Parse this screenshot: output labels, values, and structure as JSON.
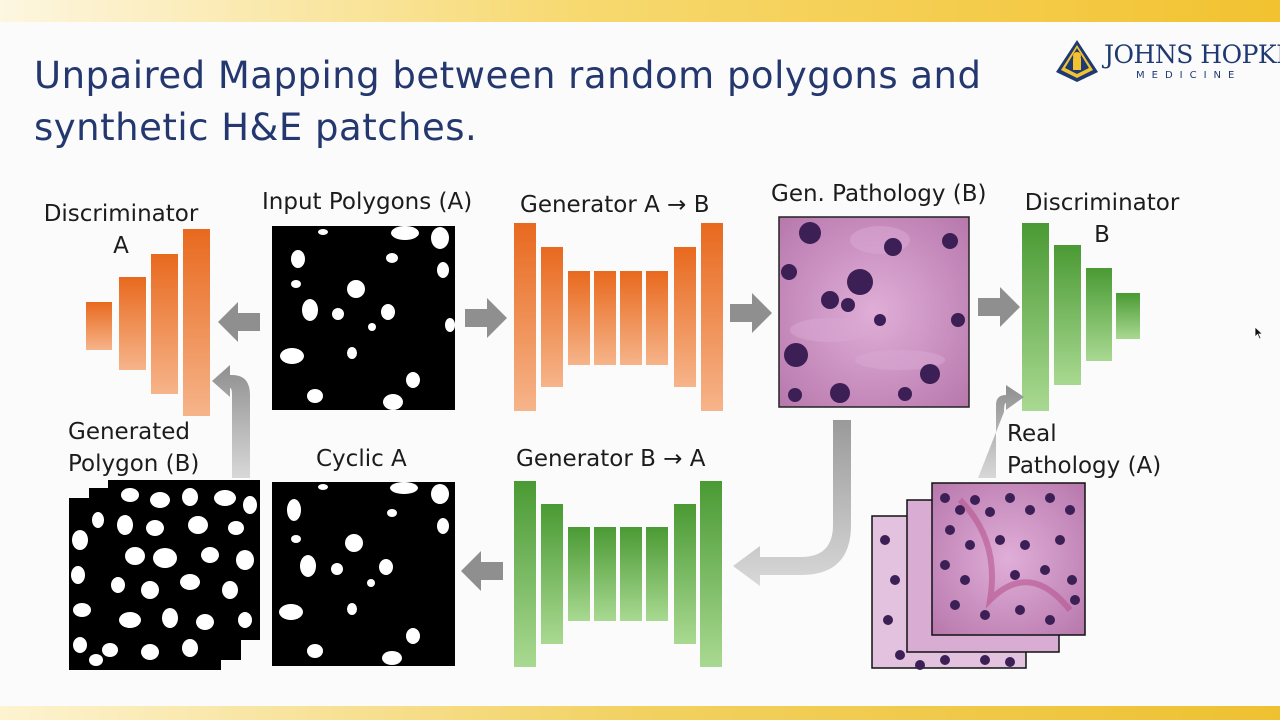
{
  "slide": {
    "title_line1": "Unpaired Mapping between random polygons and",
    "title_line2": "synthetic H&E patches."
  },
  "logo": {
    "name": "JOHNS HOPKINS",
    "subtitle": "MEDICINE"
  },
  "labels": {
    "discriminator_a_line1": "Discriminator",
    "discriminator_a_line2": "A",
    "input_polygons": "Input Polygons (A)",
    "generator_ab": "Generator A → B",
    "gen_pathology": "Gen. Pathology (B)",
    "discriminator_b_line1": "Discriminator",
    "discriminator_b_line2": "B",
    "generated_polygon_line1": "Generated",
    "generated_polygon_line2": "Polygon (B)",
    "cyclic_a": "Cyclic A",
    "generator_ba": "Generator B → A",
    "real_pathology_line1": "Real",
    "real_pathology_line2": "Pathology (A)"
  },
  "colors": {
    "title": "#24386f",
    "orange_top": "#e8691e",
    "orange_bottom": "#f6b48a",
    "green_top": "#4a9a34",
    "green_bottom": "#a9d991",
    "arrow": "#8f8f8f",
    "tissue_pink": "#c98ac0",
    "nucleus": "#3c1f55"
  }
}
